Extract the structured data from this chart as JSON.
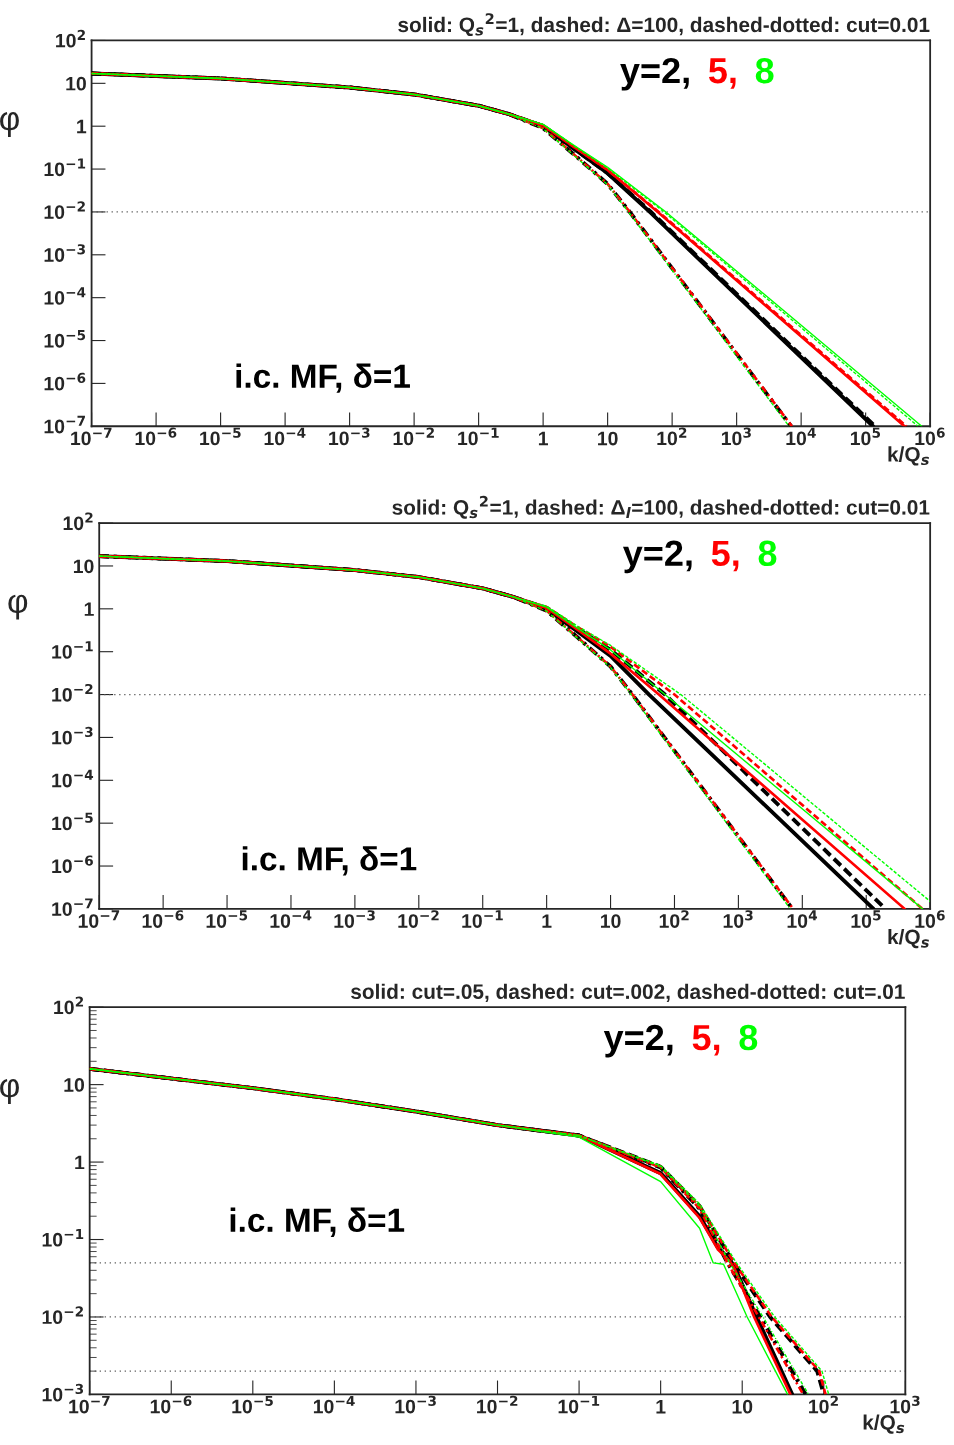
{
  "chart_data": [
    {
      "type": "line",
      "title": "solid: Q$_{s}$$^{2}$=1, dashed: Δ=100, dashed-dotted: cut=0.01",
      "xlabel": "k/Q$_{s}$",
      "ylabel": "φ",
      "log": "xy",
      "xlim": [
        1e-07,
        1000000.0
      ],
      "ylim": [
        1e-07,
        100
      ],
      "xticks": [
        {
          "value": 1e-07,
          "label": "10$^{−7}$"
        },
        {
          "value": 1e-06,
          "label": "10$^{−6}$"
        },
        {
          "value": 1e-05,
          "label": "10$^{−5}$"
        },
        {
          "value": 0.0001,
          "label": "10$^{−4}$"
        },
        {
          "value": 0.001,
          "label": "10$^{−3}$"
        },
        {
          "value": 0.01,
          "label": "10$^{−2}$"
        },
        {
          "value": 0.1,
          "label": "10$^{−1}$"
        },
        1,
        10,
        {
          "value": 100,
          "label": "10$^{2}$"
        },
        {
          "value": 1000,
          "label": "10$^{3}$"
        },
        {
          "value": 10000,
          "label": "10$^{4}$"
        },
        {
          "value": 100000,
          "label": "10$^{5}$"
        },
        {
          "value": 1000000,
          "label": "10$^{6}$"
        }
      ],
      "yticks": [
        {
          "value": 1e-07,
          "label": "10$^{−7}$"
        },
        {
          "value": 1e-06,
          "label": "10$^{−6}$"
        },
        {
          "value": 1e-05,
          "label": "10$^{−5}$"
        },
        {
          "value": 0.0001,
          "label": "10$^{−4}$"
        },
        {
          "value": 0.001,
          "label": "10$^{−3}$"
        },
        {
          "value": 0.01,
          "label": "10$^{−2}$"
        },
        {
          "value": 0.1,
          "label": "10$^{−1}$"
        },
        1,
        10,
        {
          "value": 100,
          "label": "10$^{2}$"
        }
      ],
      "ref_lines": [
        {
          "axis": "y",
          "value": 0.01,
          "line_style": "dotted",
          "color": "#555555"
        }
      ],
      "annotations": [
        "y=2,",
        "5,",
        "8",
        "i.c. MF, δ=1"
      ],
      "series": [
        {
          "color": "#000000",
          "line_style": "solid",
          "x": [
            1e-07,
            1e-05,
            0.001,
            0.01,
            0.1,
            0.3,
            1,
            3,
            10,
            45,
            130000
          ],
          "values": [
            17,
            13,
            8,
            5.5,
            3,
            1.9,
            1.0,
            0.3,
            0.08,
            0.01,
            1e-07
          ]
        },
        {
          "color": "#ff0000",
          "line_style": "solid",
          "x": [
            1e-07,
            1e-05,
            0.001,
            0.01,
            0.1,
            0.3,
            1,
            3,
            10,
            60,
            400000
          ],
          "values": [
            17,
            13,
            8,
            5.5,
            3,
            1.9,
            1.05,
            0.33,
            0.095,
            0.01,
            1e-07
          ]
        },
        {
          "color": "#00ff00",
          "line_style": "solid",
          "x": [
            1e-07,
            1e-05,
            0.001,
            0.01,
            0.1,
            0.3,
            1,
            3,
            10,
            80,
            740000
          ],
          "values": [
            17,
            13,
            8,
            5.5,
            3,
            1.9,
            1.1,
            0.36,
            0.11,
            0.01,
            1e-07
          ]
        },
        {
          "color": "#000000",
          "line_style": "dashed",
          "x": [
            1e-07,
            1e-05,
            0.001,
            0.01,
            0.1,
            0.3,
            1,
            3,
            10,
            47,
            140000
          ],
          "values": [
            17,
            13,
            8,
            5.5,
            3,
            1.9,
            1.0,
            0.3,
            0.08,
            0.01,
            1e-07
          ]
        },
        {
          "color": "#ff0000",
          "line_style": "dashed",
          "x": [
            1e-07,
            1e-05,
            0.001,
            0.01,
            0.1,
            0.3,
            1,
            3,
            10,
            62,
            430000
          ],
          "values": [
            17,
            13,
            8,
            5.5,
            3,
            1.9,
            1.05,
            0.33,
            0.095,
            0.01,
            1e-07
          ]
        },
        {
          "color": "#00ff00",
          "line_style": "dashed",
          "x": [
            1e-07,
            1e-05,
            0.001,
            0.01,
            0.1,
            0.3,
            1,
            3,
            10,
            75,
            650000
          ],
          "values": [
            17,
            13,
            8,
            5.5,
            3,
            1.9,
            1.1,
            0.35,
            0.105,
            0.01,
            1e-07
          ]
        },
        {
          "color": "#000000",
          "line_style": "dashdot",
          "x": [
            1e-07,
            1e-05,
            0.001,
            0.01,
            0.1,
            0.3,
            1,
            3,
            10,
            22,
            7000
          ],
          "values": [
            17,
            13,
            8,
            5.5,
            3,
            1.9,
            0.9,
            0.22,
            0.045,
            0.01,
            1e-07
          ]
        },
        {
          "color": "#ff0000",
          "line_style": "dashdot",
          "x": [
            1e-07,
            1e-05,
            0.001,
            0.01,
            0.1,
            0.3,
            1,
            3,
            10,
            22,
            7200
          ],
          "values": [
            17,
            13,
            8,
            5.5,
            3,
            1.9,
            0.9,
            0.22,
            0.045,
            0.01,
            1e-07
          ]
        },
        {
          "color": "#00ff00",
          "line_style": "dashdot",
          "x": [
            1e-07,
            1e-05,
            0.001,
            0.01,
            0.1,
            0.3,
            1,
            3,
            10,
            21,
            6500
          ],
          "values": [
            17,
            13,
            8,
            5.5,
            3,
            1.9,
            0.88,
            0.21,
            0.043,
            0.01,
            1e-07
          ]
        }
      ]
    },
    {
      "type": "line",
      "title": "solid: Q$_{s}$$^{2}$=1, dashed: Δ$_{l}$=100, dashed-dotted: cut=0.01",
      "xlabel": "k/Q$_{s}$",
      "ylabel": "φ",
      "log": "xy",
      "xlim": [
        1e-07,
        1000000.0
      ],
      "ylim": [
        1e-07,
        100
      ],
      "xticks": [
        {
          "value": 1e-07,
          "label": "10$^{−7}$"
        },
        {
          "value": 1e-06,
          "label": "10$^{−6}$"
        },
        {
          "value": 1e-05,
          "label": "10$^{−5}$"
        },
        {
          "value": 0.0001,
          "label": "10$^{−4}$"
        },
        {
          "value": 0.001,
          "label": "10$^{−3}$"
        },
        {
          "value": 0.01,
          "label": "10$^{−2}$"
        },
        {
          "value": 0.1,
          "label": "10$^{−1}$"
        },
        1,
        10,
        {
          "value": 100,
          "label": "10$^{2}$"
        },
        {
          "value": 1000,
          "label": "10$^{3}$"
        },
        {
          "value": 10000,
          "label": "10$^{4}$"
        },
        {
          "value": 100000,
          "label": "10$^{5}$"
        },
        {
          "value": 1000000,
          "label": "10$^{6}$"
        }
      ],
      "yticks": [
        {
          "value": 1e-07,
          "label": "10$^{−7}$"
        },
        {
          "value": 1e-06,
          "label": "10$^{−6}$"
        },
        {
          "value": 1e-05,
          "label": "10$^{−5}$"
        },
        {
          "value": 0.0001,
          "label": "10$^{−4}$"
        },
        {
          "value": 0.001,
          "label": "10$^{−3}$"
        },
        {
          "value": 0.01,
          "label": "10$^{−2}$"
        },
        {
          "value": 0.1,
          "label": "10$^{−1}$"
        },
        1,
        10,
        {
          "value": 100,
          "label": "10$^{2}$"
        }
      ],
      "ref_lines": [
        {
          "axis": "y",
          "value": 0.01,
          "line_style": "dotted",
          "color": "#555555"
        }
      ],
      "annotations": [
        "y=2,",
        "5,",
        "8",
        "i.c. MF, δ=1"
      ],
      "series": [
        {
          "color": "#000000",
          "line_style": "solid",
          "x": [
            1e-07,
            1e-05,
            0.001,
            0.01,
            0.1,
            0.3,
            1,
            3,
            10,
            40,
            130000
          ],
          "values": [
            17,
            13,
            8,
            5.5,
            3,
            1.9,
            1.0,
            0.3,
            0.08,
            0.01,
            1e-07
          ]
        },
        {
          "color": "#ff0000",
          "line_style": "solid",
          "x": [
            1e-07,
            1e-05,
            0.001,
            0.01,
            0.1,
            0.3,
            1,
            3,
            10,
            57,
            400000
          ],
          "values": [
            17,
            13,
            8,
            5.5,
            3,
            1.9,
            1.05,
            0.33,
            0.09,
            0.01,
            1e-07
          ]
        },
        {
          "color": "#00ff00",
          "line_style": "solid",
          "x": [
            1e-07,
            1e-05,
            0.001,
            0.01,
            0.1,
            0.3,
            1,
            3,
            10,
            71,
            760000
          ],
          "values": [
            17,
            13,
            8,
            5.5,
            3,
            1.9,
            1.1,
            0.36,
            0.11,
            0.01,
            1e-07
          ]
        },
        {
          "color": "#000000",
          "line_style": "dashed",
          "x": [
            1e-07,
            1e-05,
            0.001,
            0.01,
            0.1,
            0.3,
            1,
            3,
            10,
            71,
            200000
          ],
          "values": [
            17,
            13,
            8,
            5.5,
            3,
            1.9,
            1.05,
            0.35,
            0.11,
            0.01,
            1e-07
          ]
        },
        {
          "color": "#ff0000",
          "line_style": "dashed",
          "x": [
            1e-07,
            1e-05,
            0.001,
            0.01,
            0.1,
            0.3,
            1,
            3,
            10,
            100,
            760000
          ],
          "values": [
            17,
            13,
            8,
            5.5,
            3,
            1.9,
            1.1,
            0.38,
            0.13,
            0.01,
            1e-07
          ]
        },
        {
          "color": "#00ff00",
          "line_style": "dashed",
          "x": [
            1e-07,
            1e-05,
            0.001,
            0.01,
            0.1,
            0.3,
            1,
            3,
            10,
            126,
            1000000
          ],
          "values": [
            17,
            13,
            8,
            5.5,
            3,
            1.9,
            1.15,
            0.4,
            0.14,
            0.01,
            1.5e-07
          ]
        },
        {
          "color": "#000000",
          "line_style": "dashdot",
          "x": [
            1e-07,
            1e-05,
            0.001,
            0.01,
            0.1,
            0.3,
            1,
            3,
            10,
            22,
            7000
          ],
          "values": [
            17,
            13,
            8,
            5.5,
            3,
            1.9,
            0.9,
            0.22,
            0.045,
            0.01,
            1e-07
          ]
        },
        {
          "color": "#ff0000",
          "line_style": "dashdot",
          "x": [
            1e-07,
            1e-05,
            0.001,
            0.01,
            0.1,
            0.3,
            1,
            3,
            10,
            22,
            7200
          ],
          "values": [
            17,
            13,
            8,
            5.5,
            3,
            1.9,
            0.9,
            0.22,
            0.045,
            0.01,
            1e-07
          ]
        },
        {
          "color": "#00ff00",
          "line_style": "dashdot",
          "x": [
            1e-07,
            1e-05,
            0.001,
            0.01,
            0.1,
            0.3,
            1,
            3,
            10,
            21,
            6500
          ],
          "values": [
            17,
            13,
            8,
            5.5,
            3,
            1.9,
            0.88,
            0.21,
            0.043,
            0.01,
            1e-07
          ]
        }
      ]
    },
    {
      "type": "line",
      "title": "solid: cut=.05, dashed: cut=.002, dashed-dotted: cut=.01",
      "xlabel": "k/Q$_{s}$",
      "ylabel": "φ",
      "log": "xy",
      "xlim": [
        1e-07,
        1000
      ],
      "ylim": [
        0.001,
        100
      ],
      "xticks": [
        {
          "value": 1e-07,
          "label": "10$^{−7}$"
        },
        {
          "value": 1e-06,
          "label": "10$^{−6}$"
        },
        {
          "value": 1e-05,
          "label": "10$^{−5}$"
        },
        {
          "value": 0.0001,
          "label": "10$^{−4}$"
        },
        {
          "value": 0.001,
          "label": "10$^{−3}$"
        },
        {
          "value": 0.01,
          "label": "10$^{−2}$"
        },
        {
          "value": 0.1,
          "label": "10$^{−1}$"
        },
        1,
        10,
        {
          "value": 100,
          "label": "10$^{2}$"
        },
        {
          "value": 1000,
          "label": "10$^{3}$"
        }
      ],
      "yticks": [
        {
          "value": 0.001,
          "label": "10$^{−3}$"
        },
        {
          "value": 0.01,
          "label": "10$^{−2}$"
        },
        {
          "value": 0.1,
          "label": "10$^{−1}$"
        },
        1,
        10,
        {
          "value": 100,
          "label": "10$^{2}$"
        }
      ],
      "ref_lines": [
        {
          "axis": "y",
          "value": 0.05,
          "line_style": "dotted",
          "color": "#555555"
        },
        {
          "axis": "y",
          "value": 0.01,
          "line_style": "dotted",
          "color": "#555555"
        },
        {
          "axis": "y",
          "value": 0.002,
          "line_style": "dotted",
          "color": "#555555"
        }
      ],
      "annotations": [
        "y=2,",
        "5,",
        "8",
        "i.c. MF, δ=1"
      ],
      "series": [
        {
          "color": "#000000",
          "line_style": "solid",
          "x": [
            1e-07,
            1e-05,
            0.0001,
            0.001,
            0.01,
            0.1,
            1,
            3,
            5,
            7,
            8,
            15,
            41
          ],
          "values": [
            16,
            9,
            6.5,
            4.5,
            3,
            2.2,
            0.72,
            0.2,
            0.08,
            0.055,
            0.045,
            0.01,
            0.001
          ]
        },
        {
          "color": "#ff0000",
          "line_style": "solid",
          "x": [
            1e-07,
            1e-05,
            0.0001,
            0.001,
            0.01,
            0.1,
            1,
            3,
            5,
            7,
            8,
            14,
            39
          ],
          "values": [
            16,
            9,
            6.5,
            4.5,
            3,
            2.2,
            0.7,
            0.19,
            0.075,
            0.053,
            0.043,
            0.01,
            0.001
          ]
        },
        {
          "color": "#00ff00",
          "line_style": "solid",
          "x": [
            1e-07,
            1e-05,
            0.0001,
            0.001,
            0.01,
            0.1,
            1,
            3,
            4.4,
            5.9,
            11.5,
            36
          ],
          "values": [
            16,
            9,
            6.5,
            4.5,
            3,
            2.1,
            0.56,
            0.14,
            0.05,
            0.048,
            0.01,
            0.001
          ]
        },
        {
          "color": "#000000",
          "line_style": "dashed",
          "x": [
            1e-07,
            1e-05,
            0.0001,
            0.001,
            0.01,
            0.1,
            1,
            3,
            7.8,
            22,
            83,
            100
          ],
          "values": [
            16,
            9,
            6.5,
            4.5,
            3,
            2.2,
            0.87,
            0.27,
            0.05,
            0.01,
            0.002,
            0.001
          ]
        },
        {
          "color": "#ff0000",
          "line_style": "dashed",
          "x": [
            1e-07,
            1e-05,
            0.0001,
            0.001,
            0.01,
            0.1,
            1,
            3,
            8,
            23,
            88,
            105
          ],
          "values": [
            16,
            9,
            6.5,
            4.5,
            3,
            2.2,
            0.87,
            0.27,
            0.05,
            0.01,
            0.002,
            0.001
          ]
        },
        {
          "color": "#00ff00",
          "line_style": "dashed",
          "x": [
            1e-07,
            1e-05,
            0.0001,
            0.001,
            0.01,
            0.1,
            1,
            3,
            8.5,
            25,
            95,
            115
          ],
          "values": [
            16,
            9,
            6.5,
            4.5,
            3,
            2.2,
            0.9,
            0.29,
            0.05,
            0.01,
            0.002,
            0.001
          ]
        },
        {
          "color": "#000000",
          "line_style": "dashdot",
          "x": [
            1e-07,
            1e-05,
            0.0001,
            0.001,
            0.01,
            0.1,
            1,
            3,
            6.6,
            16.6,
            60
          ],
          "values": [
            16,
            9,
            6.5,
            4.5,
            3,
            2.2,
            0.85,
            0.25,
            0.05,
            0.01,
            0.001
          ]
        },
        {
          "color": "#ff0000",
          "line_style": "dashdot",
          "x": [
            1e-07,
            1e-05,
            0.0001,
            0.001,
            0.01,
            0.1,
            1,
            3,
            6.6,
            16,
            56
          ],
          "values": [
            16,
            9,
            6.5,
            4.5,
            3,
            2.2,
            0.85,
            0.25,
            0.05,
            0.01,
            0.001
          ]
        },
        {
          "color": "#00ff00",
          "line_style": "dashdot",
          "x": [
            1e-07,
            1e-05,
            0.0001,
            0.001,
            0.01,
            0.1,
            1,
            3,
            7,
            18,
            65
          ],
          "values": [
            16,
            9,
            6.5,
            4.5,
            3,
            2.2,
            0.87,
            0.27,
            0.05,
            0.01,
            0.001
          ]
        }
      ]
    }
  ]
}
